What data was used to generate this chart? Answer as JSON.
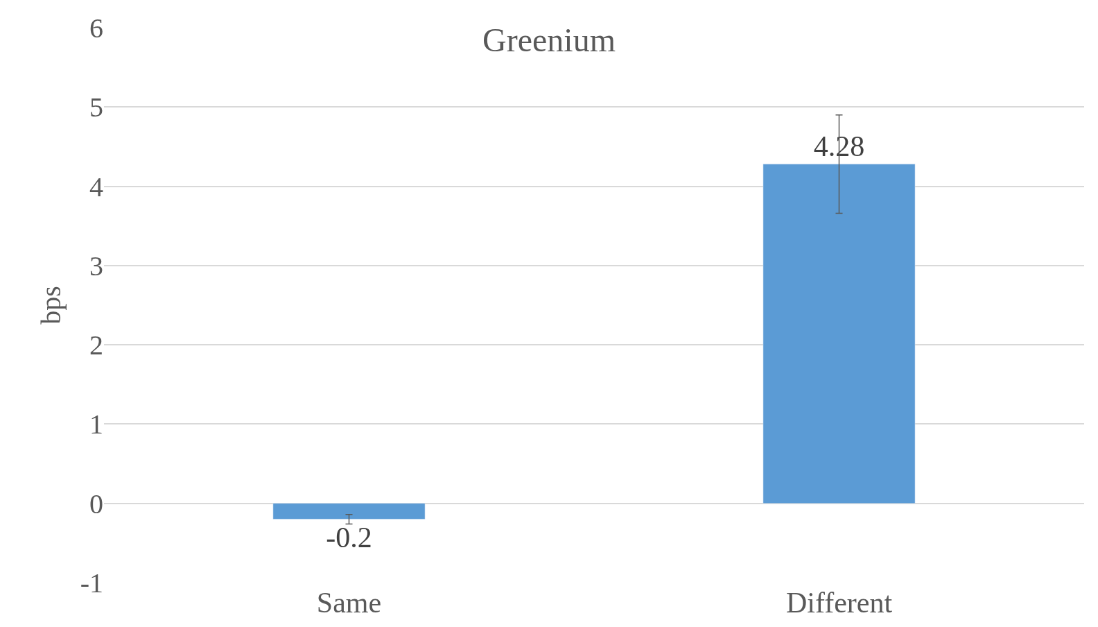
{
  "chart_data": {
    "type": "bar",
    "title": "Greenium",
    "ylabel": "bps",
    "categories": [
      "Same",
      "Different"
    ],
    "values": [
      -0.2,
      4.28
    ],
    "errors": [
      0.06,
      0.62
    ],
    "color": "#5b9bd5",
    "data_labels": true,
    "ylim": [
      -1,
      6
    ],
    "yticks": [
      -1,
      0,
      1,
      2,
      3,
      4,
      5,
      6
    ],
    "grid": "y",
    "legend": false
  }
}
